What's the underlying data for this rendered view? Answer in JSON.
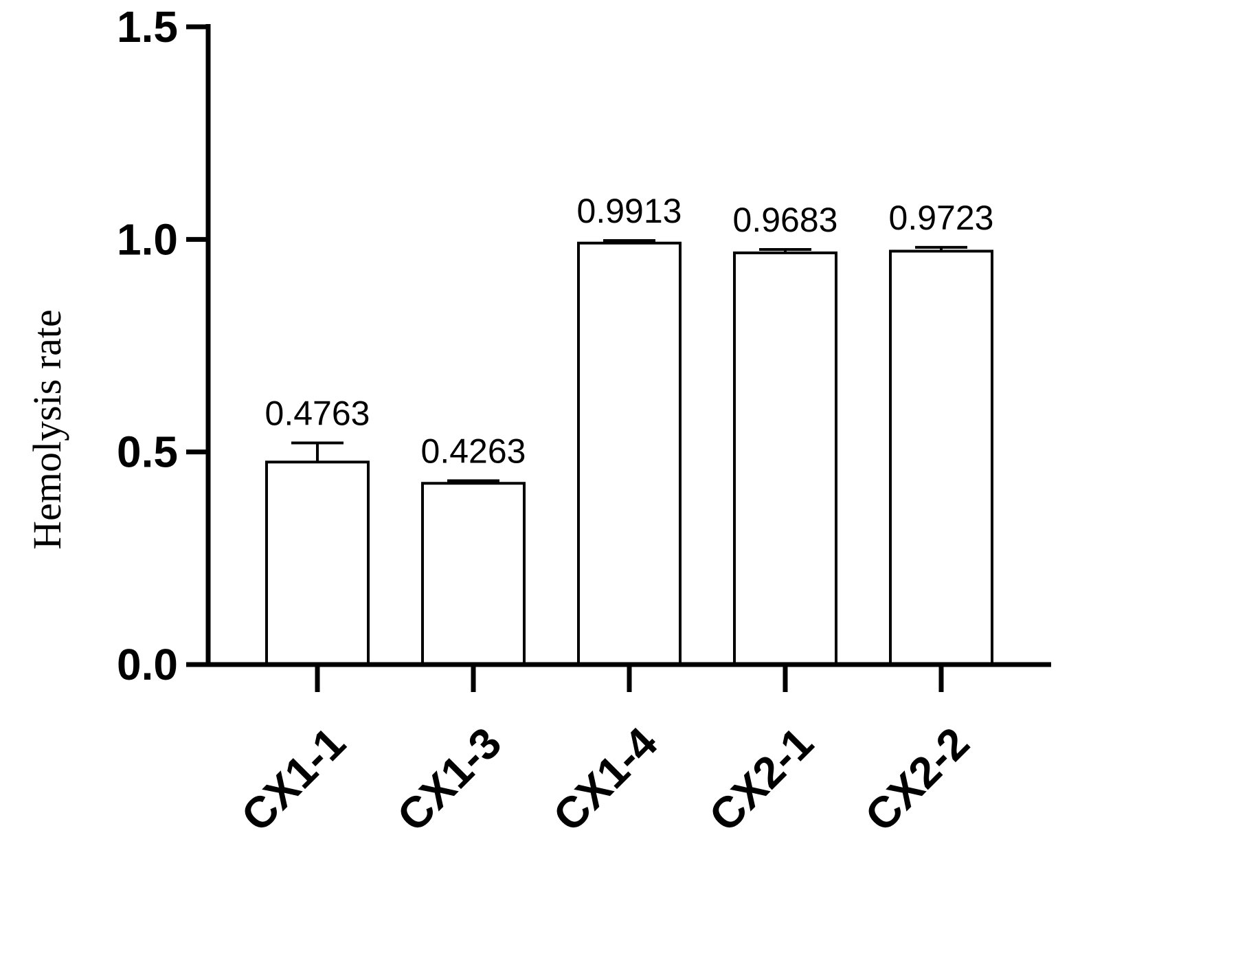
{
  "chart_data": {
    "type": "bar",
    "categories": [
      "CX1-1",
      "CX1-3",
      "CX1-4",
      "CX2-1",
      "CX2-2"
    ],
    "values": [
      0.4763,
      0.4263,
      0.9913,
      0.9683,
      0.9723
    ],
    "error_upper": [
      0.5213,
      0.4323,
      0.9973,
      0.9763,
      0.9813
    ],
    "data_labels": [
      "0.4763",
      "0.4263",
      "0.9913",
      "0.9683",
      "0.9723"
    ],
    "ylabel": "Hemolysis rate",
    "xlabel": "",
    "ylim": [
      0,
      1.5
    ],
    "yticks": [
      0.0,
      0.5,
      1.0,
      1.5
    ],
    "ytick_labels": [
      "0.0",
      "0.5",
      "1.0",
      "1.5"
    ],
    "grid": false,
    "bar_fill": "#ffffff",
    "bar_stroke": "#000000"
  }
}
